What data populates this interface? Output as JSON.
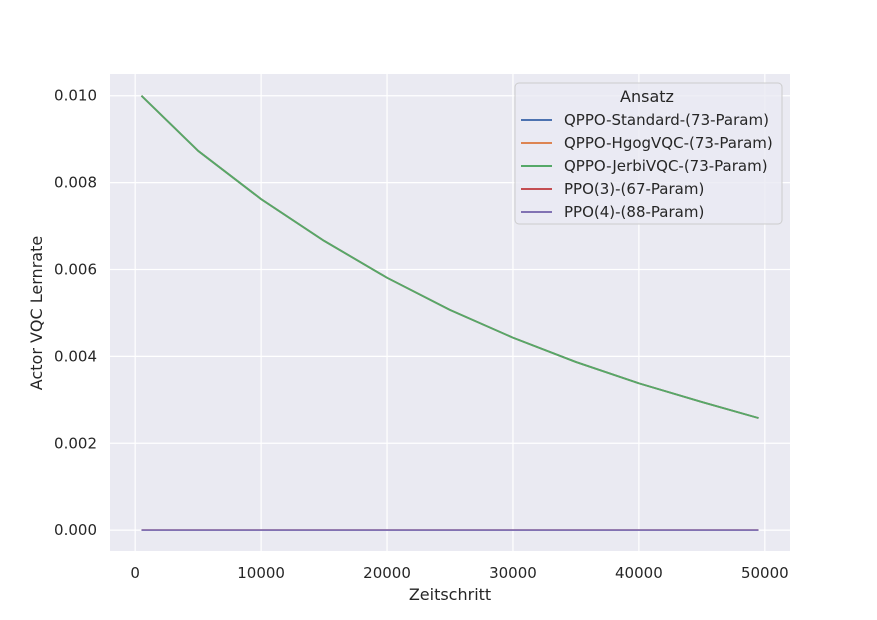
{
  "chart_data": {
    "type": "line",
    "title": "",
    "xlabel": "Zeitschritt",
    "ylabel": "Actor VQC Lernrate",
    "xlim": [
      -2000,
      52000
    ],
    "ylim": [
      -0.00048,
      0.0105
    ],
    "xticks": [
      0,
      10000,
      20000,
      30000,
      40000,
      50000
    ],
    "xtick_labels": [
      "0",
      "10000",
      "20000",
      "30000",
      "40000",
      "50000"
    ],
    "yticks": [
      0.0,
      0.002,
      0.004,
      0.006,
      0.008,
      0.01
    ],
    "ytick_labels": [
      "0.000",
      "0.002",
      "0.004",
      "0.006",
      "0.008",
      "0.010"
    ],
    "grid": true,
    "legend_title": "Ansatz",
    "legend_position": "top-right",
    "x": [
      500,
      5000,
      10000,
      15000,
      20000,
      25000,
      30000,
      35000,
      40000,
      45000,
      49500
    ],
    "series": [
      {
        "name": "QPPO-Standard-(73-Param)",
        "color": "#4c72b0",
        "values": [
          0.01,
          0.00873,
          0.00762,
          0.00666,
          0.00581,
          0.00507,
          0.00443,
          0.00387,
          0.00338,
          0.00295,
          0.00258
        ]
      },
      {
        "name": "QPPO-HgogVQC-(73-Param)",
        "color": "#dd8452",
        "values": [
          0.01,
          0.00873,
          0.00762,
          0.00666,
          0.00581,
          0.00507,
          0.00443,
          0.00387,
          0.00338,
          0.00295,
          0.00258
        ]
      },
      {
        "name": "QPPO-JerbiVQC-(73-Param)",
        "color": "#55a868",
        "values": [
          0.01,
          0.00873,
          0.00762,
          0.00666,
          0.00581,
          0.00507,
          0.00443,
          0.00387,
          0.00338,
          0.00295,
          0.00258
        ]
      },
      {
        "name": "PPO(3)-(67-Param)",
        "color": "#c44e52",
        "values": [
          0,
          0,
          0,
          0,
          0,
          0,
          0,
          0,
          0,
          0,
          0
        ]
      },
      {
        "name": "PPO(4)-(88-Param)",
        "color": "#8172b3",
        "values": [
          0,
          0,
          0,
          0,
          0,
          0,
          0,
          0,
          0,
          0,
          0
        ]
      }
    ],
    "colors": {
      "background": "#eaeaf2",
      "grid": "#ffffff",
      "legend_bg": "#eaeaf2",
      "legend_border": "#cccccc"
    }
  }
}
